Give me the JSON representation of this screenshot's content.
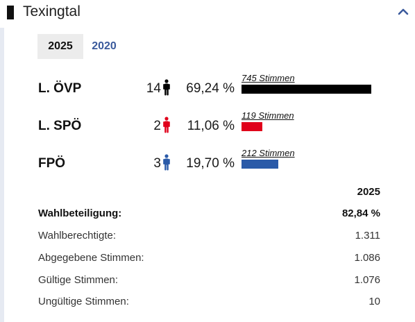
{
  "header": {
    "title": "Texingtal"
  },
  "tabs": [
    {
      "label": "2025",
      "active": true
    },
    {
      "label": "2020",
      "active": false
    }
  ],
  "parties": [
    {
      "name": "L. ÖVP",
      "seats": "14",
      "percent": "69,24 %",
      "votes": "745 Stimmen",
      "share": 0.6924,
      "color": "#000000"
    },
    {
      "name": "L. SPÖ",
      "seats": "2",
      "percent": "11,06 %",
      "votes": "119 Stimmen",
      "share": 0.1106,
      "color": "#e0001b"
    },
    {
      "name": "FPÖ",
      "seats": "3",
      "percent": "19,70 %",
      "votes": "212 Stimmen",
      "share": 0.197,
      "color": "#2a5aa8"
    }
  ],
  "stats": {
    "year": "2025",
    "turnout": {
      "label": "Wahlbeteiligung:",
      "value": "82,84 %"
    },
    "eligible": {
      "label": "Wahlberechtigte:",
      "value": "1.311"
    },
    "cast": {
      "label": "Abgegebene Stimmen:",
      "value": "1.086"
    },
    "valid": {
      "label": "Gültige Stimmen:",
      "value": "1.076"
    },
    "invalid": {
      "label": "Ungültige Stimmen:",
      "value": "10"
    }
  },
  "icons": {
    "collapse": "chevron-up-icon",
    "seat": "person-icon"
  }
}
